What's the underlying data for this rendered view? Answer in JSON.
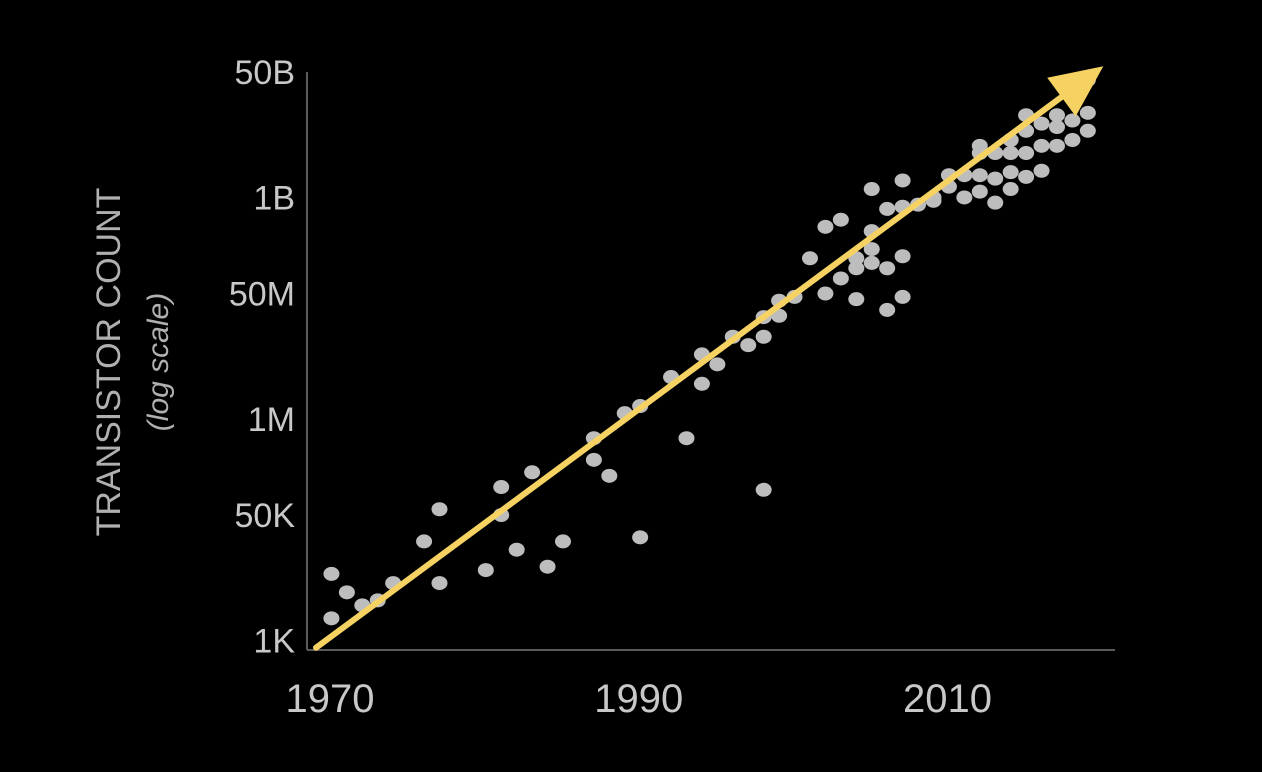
{
  "chart_data": {
    "type": "scatter",
    "ylabel": "TRANSISTOR COUNT",
    "ylabel_sub": "(log scale)",
    "y_scale": "log",
    "y_ticks": [
      {
        "value": 1000,
        "label": "1K"
      },
      {
        "value": 50000,
        "label": "50K"
      },
      {
        "value": 1000000,
        "label": "1M"
      },
      {
        "value": 50000000,
        "label": "50M"
      },
      {
        "value": 1000000000,
        "label": "1B"
      },
      {
        "value": 50000000000,
        "label": "50B"
      }
    ],
    "x_ticks": [
      {
        "value": 1970,
        "label": "1970"
      },
      {
        "value": 1990,
        "label": "1990"
      },
      {
        "value": 2010,
        "label": "2010"
      }
    ],
    "xlim": [
      1970,
      2021.5
    ],
    "ylim": [
      700,
      50000000000
    ],
    "grid": false,
    "trend": {
      "from": [
        1970,
        800
      ],
      "to": [
        2021,
        60000000000
      ],
      "color": "#f5d262"
    },
    "point_color": "#bdbdbd",
    "points": [
      [
        1971,
        2000
      ],
      [
        1971,
        8000
      ],
      [
        1972,
        4500
      ],
      [
        1973,
        3000
      ],
      [
        1974,
        3500
      ],
      [
        1975,
        6000
      ],
      [
        1977,
        22000
      ],
      [
        1978,
        6000
      ],
      [
        1978,
        60000
      ],
      [
        1981,
        9000
      ],
      [
        1982,
        50000
      ],
      [
        1982,
        120000
      ],
      [
        1983,
        17000
      ],
      [
        1984,
        190000
      ],
      [
        1985,
        10000
      ],
      [
        1986,
        22000
      ],
      [
        1988,
        550000
      ],
      [
        1988,
        280000
      ],
      [
        1989,
        170000
      ],
      [
        1990,
        1200000
      ],
      [
        1991,
        1500000
      ],
      [
        1991,
        25000
      ],
      [
        1993,
        3700000
      ],
      [
        1994,
        550000
      ],
      [
        1995,
        7500000
      ],
      [
        1995,
        3000000
      ],
      [
        1996,
        5500000
      ],
      [
        1997,
        13000000
      ],
      [
        1998,
        10000000
      ],
      [
        1999,
        24000000
      ],
      [
        1999,
        13000000
      ],
      [
        1999,
        110000
      ],
      [
        2000,
        40000000
      ],
      [
        2000,
        25000000
      ],
      [
        2001,
        45000000
      ],
      [
        2002,
        150000000
      ],
      [
        2003,
        400000000
      ],
      [
        2003,
        50000000
      ],
      [
        2004,
        500000000
      ],
      [
        2004,
        80000000
      ],
      [
        2005,
        150000000
      ],
      [
        2005,
        110000000
      ],
      [
        2005,
        42000000
      ],
      [
        2006,
        1300000000
      ],
      [
        2006,
        350000000
      ],
      [
        2006,
        200000000
      ],
      [
        2006,
        130000000
      ],
      [
        2007,
        700000000
      ],
      [
        2007,
        110000000
      ],
      [
        2007,
        30000000
      ],
      [
        2008,
        1700000000
      ],
      [
        2008,
        750000000
      ],
      [
        2008,
        160000000
      ],
      [
        2008,
        45000000
      ],
      [
        2009,
        800000000
      ],
      [
        2010,
        1000000000
      ],
      [
        2010,
        900000000
      ],
      [
        2011,
        2000000000
      ],
      [
        2011,
        1400000000
      ],
      [
        2012,
        2000000000
      ],
      [
        2012,
        1000000000
      ],
      [
        2013,
        5000000000
      ],
      [
        2013,
        4000000000
      ],
      [
        2013,
        2000000000
      ],
      [
        2013,
        1200000000
      ],
      [
        2014,
        4000000000
      ],
      [
        2014,
        1800000000
      ],
      [
        2014,
        850000000
      ],
      [
        2015,
        6000000000
      ],
      [
        2015,
        4000000000
      ],
      [
        2015,
        2200000000
      ],
      [
        2015,
        1300000000
      ],
      [
        2016,
        13000000000
      ],
      [
        2016,
        8000000000
      ],
      [
        2016,
        4000000000
      ],
      [
        2016,
        1900000000
      ],
      [
        2017,
        10000000000
      ],
      [
        2017,
        5000000000
      ],
      [
        2017,
        2300000000
      ],
      [
        2018,
        13000000000
      ],
      [
        2018,
        9000000000
      ],
      [
        2018,
        5000000000
      ],
      [
        2019,
        25000000000
      ],
      [
        2019,
        11000000000
      ],
      [
        2019,
        6000000000
      ],
      [
        2020,
        39000000000
      ],
      [
        2020,
        14000000000
      ],
      [
        2020,
        8000000000
      ]
    ]
  }
}
